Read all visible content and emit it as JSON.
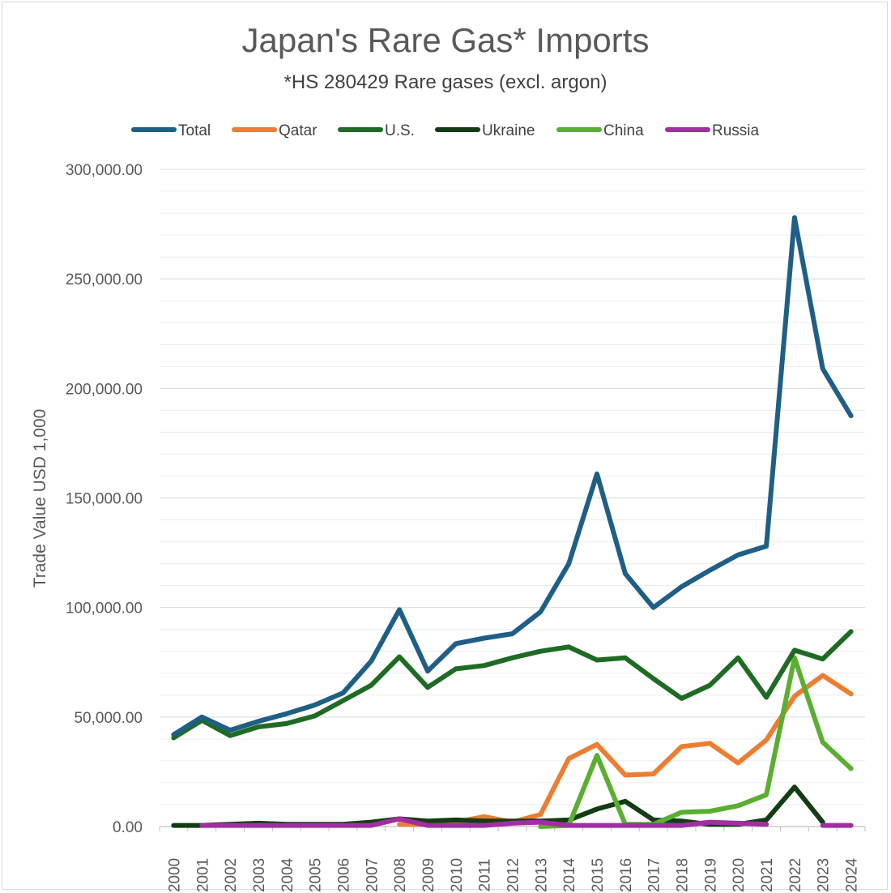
{
  "chart_data": {
    "type": "line",
    "title": "Japan's Rare Gas* Imports",
    "subtitle": "*HS 280429  Rare gases (excl. argon)",
    "ylabel": "Trade Value USD 1,000",
    "xlabel": "",
    "ylim": [
      0,
      300000
    ],
    "yticks": [
      "0.00",
      "50,000.00",
      "100,000.00",
      "150,000.00",
      "200,000.00",
      "250,000.00",
      "300,000.00"
    ],
    "ytick_values": [
      0,
      50000,
      100000,
      150000,
      200000,
      250000,
      300000
    ],
    "x": [
      "2000",
      "2001",
      "2002",
      "2003",
      "2004",
      "2005",
      "2006",
      "2007",
      "2008",
      "2009",
      "2010",
      "2011",
      "2012",
      "2013",
      "2014",
      "2015",
      "2016",
      "2017",
      "2018",
      "2019",
      "2020",
      "2021",
      "2022",
      "2023",
      "2024"
    ],
    "grid": true,
    "legend_position": "top",
    "series": [
      {
        "name": "Total",
        "color": "#1f5f86",
        "values": [
          42000,
          50000,
          44000,
          48000,
          51500,
          55500,
          61000,
          75500,
          99000,
          71000,
          83500,
          86000,
          88000,
          98000,
          120000,
          161000,
          115500,
          100000,
          109500,
          117000,
          124000,
          128000,
          278000,
          209000,
          187500
        ]
      },
      {
        "name": "Qatar",
        "color": "#ed7d31",
        "values": [
          null,
          null,
          null,
          null,
          null,
          null,
          null,
          null,
          1000,
          1000,
          2000,
          4500,
          2000,
          5500,
          31000,
          37500,
          23500,
          24000,
          36500,
          38000,
          29000,
          39500,
          59500,
          69000,
          60500
        ]
      },
      {
        "name": "U.S.",
        "color": "#1e6b24",
        "values": [
          40500,
          48500,
          41500,
          45500,
          47000,
          50500,
          57500,
          64500,
          77500,
          63500,
          72000,
          73500,
          77000,
          80000,
          82000,
          76000,
          77000,
          67500,
          58500,
          64500,
          77000,
          59000,
          80500,
          76500,
          89000
        ]
      },
      {
        "name": "Ukraine",
        "color": "#123d12",
        "values": [
          500,
          500,
          1000,
          1500,
          1000,
          1000,
          1000,
          2000,
          3500,
          2500,
          3000,
          2500,
          2500,
          2500,
          3000,
          8000,
          11500,
          3000,
          2500,
          1000,
          1000,
          3000,
          18000,
          2000,
          null
        ]
      },
      {
        "name": "China",
        "color": "#5aae32",
        "values": [
          null,
          null,
          null,
          null,
          null,
          null,
          null,
          null,
          null,
          null,
          null,
          null,
          null,
          0,
          500,
          32500,
          1000,
          1000,
          6500,
          7000,
          9500,
          14500,
          77000,
          38500,
          26500
        ]
      },
      {
        "name": "Russia",
        "color": "#a22ea1",
        "values": [
          null,
          500,
          500,
          500,
          500,
          500,
          500,
          500,
          3500,
          500,
          500,
          500,
          1500,
          2000,
          500,
          500,
          500,
          500,
          500,
          2000,
          1500,
          1000,
          null,
          500,
          500
        ]
      }
    ]
  }
}
